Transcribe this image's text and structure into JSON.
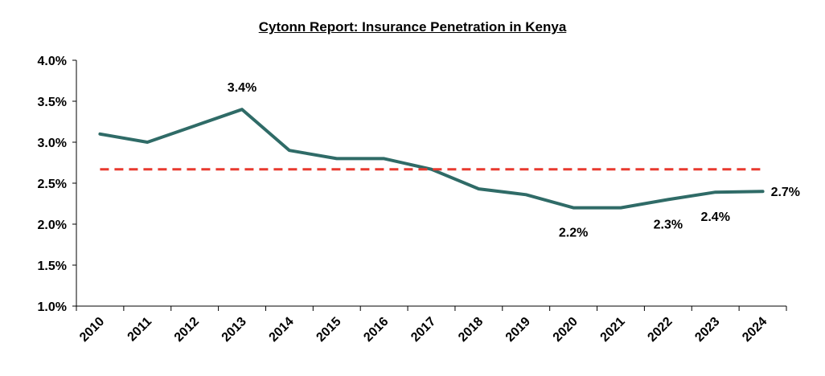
{
  "chart_data": {
    "type": "line",
    "title": "Cytonn Report: Insurance Penetration in Kenya",
    "xlabel": "",
    "ylabel": "",
    "categories": [
      "2010",
      "2011",
      "2012",
      "2013",
      "2014",
      "2015",
      "2016",
      "2017",
      "2018",
      "2019",
      "2020",
      "2021",
      "2022",
      "2023",
      "2024"
    ],
    "series": [
      {
        "values": [
          3.1,
          3.0,
          3.2,
          3.4,
          2.9,
          2.8,
          2.8,
          2.67,
          2.43,
          2.36,
          2.2,
          2.2,
          2.3,
          2.39,
          2.4
        ],
        "color": "#2f6b67"
      },
      {
        "values": [
          2.67,
          2.67,
          2.67,
          2.67,
          2.67,
          2.67,
          2.67,
          2.67,
          2.67,
          2.67,
          2.67,
          2.67,
          2.67,
          2.67,
          2.67
        ],
        "color": "#e8392f",
        "dashed": true
      }
    ],
    "y_ticks": [
      "1.0%",
      "1.5%",
      "2.0%",
      "2.5%",
      "3.0%",
      "3.5%",
      "4.0%"
    ],
    "ylim": [
      1.0,
      4.0
    ],
    "grid": false,
    "legend": "none",
    "annotations": [
      {
        "category": "2013",
        "text": "3.4%"
      },
      {
        "category": "2020",
        "text": "2.2%"
      },
      {
        "category": "2022",
        "text": "2.3%"
      },
      {
        "category": "2023",
        "text": "2.4%"
      },
      {
        "category": "2024",
        "text": "2.7%"
      }
    ]
  }
}
